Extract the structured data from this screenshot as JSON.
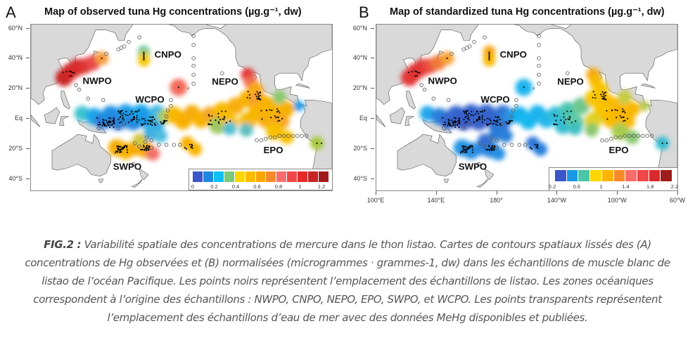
{
  "panels": [
    {
      "letter": "A",
      "title": "Map of observed tuna Hg concentrations (µg.g⁻¹, dw)",
      "legend": {
        "colors": [
          "#3a56c8",
          "#1e88e0",
          "#10bff5",
          "#7cc97c",
          "#fcd600",
          "#fcbb00",
          "#fba600",
          "#fb8a2a",
          "#fc6c6c",
          "#f04848",
          "#e52a2a",
          "#c82424",
          "#a01c1c"
        ],
        "ticks": [
          "0",
          "0.2",
          "0.4",
          "0.6",
          "0.8",
          "1",
          "1.2"
        ]
      },
      "blobs": [
        [
          122,
          27,
          5,
          "#c92525"
        ],
        [
          126,
          31,
          5,
          "#d22828"
        ],
        [
          131,
          34,
          5,
          "#d82b2b"
        ],
        [
          136,
          35,
          4.5,
          "#dd3030"
        ],
        [
          141,
          37,
          4.5,
          "#e84848"
        ],
        [
          147,
          40,
          4,
          "#f39a3a"
        ],
        [
          175,
          44.5,
          3.5,
          "#5fc4a0"
        ],
        [
          175,
          41.5,
          3.5,
          "#b8cc50"
        ],
        [
          175,
          38.5,
          3.5,
          "#f5c400"
        ],
        [
          198,
          20.5,
          5,
          "#f26a5a"
        ],
        [
          134,
          3,
          4.5,
          "#40c4d0"
        ],
        [
          142,
          1,
          5,
          "#1aa6ea"
        ],
        [
          148,
          -2,
          5,
          "#2f78d6"
        ],
        [
          153,
          2,
          5.5,
          "#1e90e2"
        ],
        [
          158,
          -2,
          5.5,
          "#2a7fdc"
        ],
        [
          163,
          3,
          5.5,
          "#1a9ce8"
        ],
        [
          168,
          -2,
          5.5,
          "#2388e0"
        ],
        [
          173,
          3,
          5.5,
          "#19a4ea"
        ],
        [
          178,
          -1,
          5.5,
          "#1e96e4"
        ],
        [
          183,
          -4,
          5,
          "#28a8e8"
        ],
        [
          184,
          3,
          5,
          "#3ab8e4"
        ],
        [
          180,
          -10,
          4.5,
          "#3ab0e2"
        ],
        [
          186,
          -12,
          4,
          "#50bce0"
        ],
        [
          189,
          1,
          4.5,
          "#a8cc60"
        ],
        [
          195,
          2,
          5,
          "#f8b800"
        ],
        [
          201,
          -2,
          5,
          "#f8b000"
        ],
        [
          207,
          3,
          5,
          "#f6ac10"
        ],
        [
          213,
          -1,
          5,
          "#f8b400"
        ],
        [
          219,
          2,
          5,
          "#f5a820"
        ],
        [
          224,
          -5,
          5,
          "#9cc860"
        ],
        [
          227,
          5,
          5,
          "#f7b800"
        ],
        [
          232,
          -3,
          5,
          "#f5c000"
        ],
        [
          232,
          -7,
          4,
          "#50c0d0"
        ],
        [
          236,
          8,
          5,
          "#f8ae10"
        ],
        [
          244,
          29,
          4,
          "#e23838"
        ],
        [
          246,
          24,
          4,
          "#f06a50"
        ],
        [
          249,
          19,
          4.5,
          "#f7a818"
        ],
        [
          244,
          13,
          5,
          "#f8b000"
        ],
        [
          251,
          12,
          5,
          "#f89c30"
        ],
        [
          256,
          9,
          5,
          "#f8b400"
        ],
        [
          250,
          4,
          5,
          "#f9b200"
        ],
        [
          244,
          -2,
          5,
          "#f6b800"
        ],
        [
          243,
          -8,
          4,
          "#60c0c0"
        ],
        [
          256,
          -1,
          5,
          "#f8ae10"
        ],
        [
          262,
          4,
          5,
          "#f6b400"
        ],
        [
          266,
          -2,
          5,
          "#f6a820"
        ],
        [
          262,
          -9,
          5,
          "#f8c000"
        ],
        [
          265,
          14,
          4,
          "#8cc870"
        ],
        [
          270,
          6,
          4.5,
          "#f8b000"
        ],
        [
          278,
          8,
          3,
          "#1e9ee8"
        ],
        [
          290,
          -17,
          4,
          "#a8c840"
        ],
        [
          270,
          -13,
          4,
          "#f8c000"
        ],
        [
          157,
          -20,
          5,
          "#f6ae00"
        ],
        [
          163,
          -22,
          5,
          "#f8b200"
        ],
        [
          170,
          -20,
          4.5,
          "#f6a800"
        ],
        [
          176,
          -21,
          5,
          "#f8a800"
        ],
        [
          181,
          -24,
          4,
          "#f27068"
        ],
        [
          172,
          -15,
          4,
          "#d0c840"
        ],
        [
          204,
          -17,
          4,
          "#f8b000"
        ],
        [
          209,
          -21,
          4,
          "#f6b400"
        ]
      ]
    },
    {
      "letter": "B",
      "title": "Map of standardized tuna Hg concentrations (µg.g⁻¹, dw)",
      "legend": {
        "colors": [
          "#3a56c8",
          "#1a98e4",
          "#4ac6a8",
          "#fcd600",
          "#fcb400",
          "#fb8a2a",
          "#fc6c6c",
          "#f04848",
          "#d82a2a",
          "#a01c1c"
        ],
        "ticks": [
          "0.2",
          "0.6",
          "1",
          "1.4",
          "1.8",
          "2.2"
        ]
      },
      "blobs": [
        [
          122,
          27,
          5,
          "#e23a3a"
        ],
        [
          126,
          31,
          5,
          "#e03030"
        ],
        [
          131,
          34,
          5,
          "#e23636"
        ],
        [
          136,
          35,
          4.5,
          "#ea5040"
        ],
        [
          141,
          37,
          4.5,
          "#f07a3a"
        ],
        [
          147,
          40,
          4,
          "#f7a030"
        ],
        [
          175,
          44.5,
          3.5,
          "#f6a010"
        ],
        [
          175,
          41.5,
          3.5,
          "#f7aa10"
        ],
        [
          175,
          38.5,
          3.5,
          "#f8b800"
        ],
        [
          198,
          20.5,
          5,
          "#1ab4ee"
        ],
        [
          134,
          3,
          4.5,
          "#20a8ea"
        ],
        [
          142,
          1,
          5,
          "#2a80dc"
        ],
        [
          148,
          -2,
          5,
          "#3662cc"
        ],
        [
          153,
          2,
          5.5,
          "#3468cf"
        ],
        [
          158,
          -2,
          5.5,
          "#3a5cc8"
        ],
        [
          163,
          3,
          5.5,
          "#3464cd"
        ],
        [
          168,
          -2,
          5.5,
          "#385ec9"
        ],
        [
          173,
          3,
          5.5,
          "#3468cd"
        ],
        [
          178,
          -1,
          5.5,
          "#3660cb"
        ],
        [
          183,
          -4,
          5,
          "#3470d2"
        ],
        [
          184,
          3,
          5,
          "#3074d4"
        ],
        [
          180,
          -10,
          4.5,
          "#2c7ad8"
        ],
        [
          186,
          -12,
          4,
          "#2c80da"
        ],
        [
          189,
          1,
          4.5,
          "#2a90e0"
        ],
        [
          195,
          2,
          5,
          "#18b0ee"
        ],
        [
          201,
          -2,
          5,
          "#14b8f0"
        ],
        [
          207,
          3,
          5,
          "#1ab4ee"
        ],
        [
          213,
          -1,
          5,
          "#20b6ea"
        ],
        [
          219,
          2,
          5,
          "#30bcd8"
        ],
        [
          224,
          -5,
          5,
          "#34bcd0"
        ],
        [
          227,
          5,
          5,
          "#4ac4b0"
        ],
        [
          232,
          -3,
          5,
          "#60c8a0"
        ],
        [
          232,
          -7,
          4,
          "#40c0c0"
        ],
        [
          236,
          8,
          5,
          "#70c890"
        ],
        [
          244,
          29,
          4,
          "#f6a810"
        ],
        [
          246,
          24,
          4,
          "#f8bc00"
        ],
        [
          249,
          19,
          4.5,
          "#f8c400"
        ],
        [
          244,
          13,
          5,
          "#f8c800"
        ],
        [
          251,
          12,
          5,
          "#f8c000"
        ],
        [
          256,
          9,
          5,
          "#f8bc00"
        ],
        [
          250,
          4,
          5,
          "#f8c400"
        ],
        [
          244,
          -2,
          5,
          "#e0d020"
        ],
        [
          243,
          -8,
          4,
          "#8cc870"
        ],
        [
          256,
          -1,
          5,
          "#f8bc00"
        ],
        [
          262,
          4,
          5,
          "#f8b400"
        ],
        [
          266,
          -2,
          5,
          "#f8b800"
        ],
        [
          262,
          -9,
          5,
          "#a8cc50"
        ],
        [
          265,
          14,
          4,
          "#c8cc40"
        ],
        [
          270,
          6,
          4.5,
          "#f8b800"
        ],
        [
          278,
          8,
          3,
          "#b8cc50"
        ],
        [
          290,
          -17,
          4,
          "#38bcd0"
        ],
        [
          270,
          -13,
          4,
          "#88c870"
        ],
        [
          157,
          -20,
          5,
          "#2694e4"
        ],
        [
          163,
          -22,
          5,
          "#2890e2"
        ],
        [
          170,
          -20,
          4.5,
          "#2a8ae0"
        ],
        [
          176,
          -21,
          5,
          "#2c84de"
        ],
        [
          181,
          -24,
          4,
          "#2890e2"
        ],
        [
          172,
          -15,
          4,
          "#3470d2"
        ],
        [
          204,
          -17,
          4,
          "#2e78d8"
        ],
        [
          209,
          -21,
          4,
          "#2c80da"
        ]
      ]
    }
  ],
  "regions": [
    {
      "name": "NWPO",
      "lon": 144,
      "lat": 24.5
    },
    {
      "name": "CNPO",
      "lon": 191,
      "lat": 42
    },
    {
      "name": "NEPO",
      "lon": 229,
      "lat": 24
    },
    {
      "name": "WCPO",
      "lon": 179,
      "lat": 12
    },
    {
      "name": "SWPO",
      "lon": 164,
      "lat": -33
    },
    {
      "name": "EPO",
      "lon": 261,
      "lat": -22
    }
  ],
  "y_axis_labels": [
    {
      "label": "60°N",
      "lat": 60
    },
    {
      "label": "40°N",
      "lat": 40
    },
    {
      "label": "20°N",
      "lat": 20
    },
    {
      "label": "Eq",
      "lat": 0
    },
    {
      "label": "20°S",
      "lat": -20
    },
    {
      "label": "40°S",
      "lat": -40
    }
  ],
  "x_axis_labels": [
    {
      "label": "100°E",
      "lon": 100
    },
    {
      "label": "140°E",
      "lon": 140
    },
    {
      "label": "180°",
      "lon": 180
    },
    {
      "label": "140°W",
      "lon": 220
    },
    {
      "label": "100°W",
      "lon": 260
    },
    {
      "label": "60°W",
      "lon": 300
    }
  ],
  "caption": {
    "label": "FIG.2 :",
    "lines": [
      "Variabilité spatiale des concentrations de mercure dans le thon listao. Cartes de contours spatiaux lissés des (A)",
      "concentrations de Hg observées et (B) normalisées (microgrammes · grammes-1, dw) dans les échantillons de muscle blanc de",
      "listao de l’océan Pacifique. Les points noirs représentent l’emplacement des échantillons de listao. Les zones océaniques",
      "correspondent à l’origine des échantillons : NWPO, CNPO, NEPO, EPO, SWPO, et WCPO. Les points transparents représentent",
      "l’emplacement des échantillons d’eau de mer avec des données MeHg disponibles et publiées."
    ]
  }
}
